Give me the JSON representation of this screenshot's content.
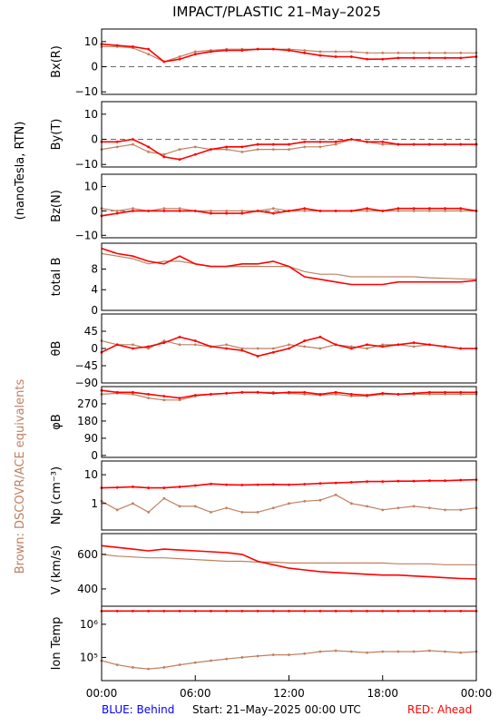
{
  "title": "IMPACT/PLASTIC   21–May–2025",
  "side_label_units": "(nanoTesla, RTN)",
  "side_label_brown": "Brown: DSCOVR/ACE equivalents",
  "footer": {
    "blue": "BLUE: Behind",
    "start": "Start: 21–May–2025 00:00 UTC",
    "red": "RED: Ahead"
  },
  "colors": {
    "ahead": "#ff0000",
    "equivalent": "#c08060",
    "behind": "#0000ff",
    "frame": "#000000"
  },
  "x_ticks": [
    "00:00",
    "06:00",
    "12:00",
    "18:00",
    "00:00"
  ],
  "chart_data": [
    {
      "type": "scatter",
      "panel": "bx",
      "ylabel": "Bx(R)",
      "ylim": [
        -11,
        15
      ],
      "yticks": [
        "−10",
        "0",
        "10"
      ],
      "zero_line": true,
      "series": [
        {
          "name": "Ahead",
          "color": "#ff0000",
          "values": [
            9,
            8.5,
            8,
            7,
            2,
            3,
            5,
            6,
            6.5,
            6.5,
            7,
            7,
            6.5,
            5.5,
            4.5,
            4,
            4,
            3,
            3,
            3.5,
            3.5,
            3.5,
            3.5,
            3.5,
            4
          ]
        },
        {
          "values": [
            8,
            8,
            7.5,
            5,
            2,
            4,
            6,
            6.5,
            7,
            7,
            7,
            7,
            7,
            6.5,
            6,
            6,
            6,
            5.5,
            5.5,
            5.5,
            5.5,
            5.5,
            5.5,
            5.5,
            5.5
          ]
        }
      ]
    },
    {
      "type": "scatter",
      "panel": "by",
      "ylabel": "By(T)",
      "ylim": [
        -11,
        15
      ],
      "yticks": [
        "−10",
        "0",
        "10"
      ],
      "zero_line": true,
      "series": [
        {
          "name": "Ahead",
          "values": [
            -1,
            -1,
            0,
            -3,
            -7,
            -8,
            -6,
            -4,
            -3,
            -3,
            -2,
            -2,
            -2,
            -1,
            -1,
            -1,
            0,
            -1,
            -1,
            -2,
            -2,
            -2,
            -2,
            -2,
            -2
          ]
        },
        {
          "values": [
            -4,
            -3,
            -2,
            -5,
            -6,
            -4,
            -3,
            -4,
            -4,
            -5,
            -4,
            -4,
            -4,
            -3,
            -3,
            -2,
            0,
            -1,
            -2,
            -2,
            -2,
            -2,
            -2,
            -2,
            -2
          ]
        }
      ]
    },
    {
      "type": "scatter",
      "panel": "bz",
      "ylabel": "Bz(N)",
      "ylim": [
        -11,
        15
      ],
      "yticks": [
        "−10",
        "0",
        "10"
      ],
      "zero_line": true,
      "series": [
        {
          "name": "Ahead",
          "values": [
            -2,
            -1,
            0,
            0,
            0,
            0,
            0,
            -1,
            -1,
            -1,
            0,
            -1,
            0,
            1,
            0,
            0,
            0,
            1,
            0,
            1,
            1,
            1,
            1,
            1,
            0
          ]
        },
        {
          "values": [
            1,
            0,
            1,
            0,
            1,
            1,
            0,
            0,
            0,
            0,
            0,
            1,
            0,
            0,
            0,
            0,
            0,
            0,
            0,
            0,
            0,
            0,
            0,
            0,
            0
          ]
        }
      ]
    },
    {
      "type": "line",
      "panel": "btot",
      "ylabel": "total B",
      "ylim": [
        0,
        13
      ],
      "yticks": [
        "0",
        "4",
        "8"
      ],
      "series": [
        {
          "name": "Ahead",
          "values": [
            12,
            11,
            10.5,
            9.5,
            9,
            10.5,
            9,
            8.5,
            8.5,
            9,
            9,
            9.5,
            8.5,
            6.5,
            6,
            5.5,
            5,
            5,
            5,
            5.5,
            5.5,
            5.5,
            5.5,
            5.5,
            5.8
          ]
        },
        {
          "values": [
            11,
            10.5,
            10,
            9,
            9.5,
            9.5,
            9,
            8.5,
            8.5,
            8.5,
            8.5,
            8.5,
            8.5,
            7.5,
            7,
            7,
            6.5,
            6.5,
            6.5,
            6.5,
            6.5,
            6.3,
            6.2,
            6.1,
            6
          ]
        }
      ]
    },
    {
      "type": "scatter",
      "panel": "theta",
      "ylabel": "θB",
      "ylim": [
        -90,
        90
      ],
      "yticks": [
        "−90",
        "−45",
        "0",
        "45"
      ],
      "series": [
        {
          "name": "Ahead",
          "values": [
            -10,
            10,
            0,
            5,
            15,
            30,
            20,
            5,
            0,
            -5,
            -20,
            -10,
            0,
            20,
            30,
            10,
            0,
            10,
            5,
            10,
            15,
            10,
            5,
            0,
            0
          ]
        },
        {
          "values": [
            20,
            10,
            10,
            0,
            20,
            10,
            10,
            5,
            10,
            0,
            0,
            0,
            10,
            5,
            0,
            10,
            5,
            0,
            10,
            10,
            5,
            10,
            5,
            0,
            0
          ]
        }
      ]
    },
    {
      "type": "scatter",
      "panel": "phi",
      "ylabel": "φB",
      "ylim": [
        -10,
        360
      ],
      "yticks": [
        "0",
        "90",
        "180",
        "270"
      ],
      "series": [
        {
          "name": "Ahead",
          "values": [
            340,
            330,
            330,
            320,
            310,
            300,
            315,
            320,
            325,
            330,
            330,
            325,
            330,
            330,
            320,
            330,
            320,
            315,
            325,
            320,
            325,
            330,
            330,
            330,
            330
          ]
        },
        {
          "values": [
            320,
            325,
            320,
            300,
            290,
            290,
            310,
            320,
            325,
            330,
            330,
            330,
            325,
            320,
            315,
            320,
            310,
            310,
            320,
            320,
            320,
            320,
            320,
            320,
            320
          ]
        }
      ]
    },
    {
      "type": "scatter",
      "panel": "np",
      "ylabel": "Np (cm⁻³)",
      "ylim": [
        0.12,
        30
      ],
      "log": true,
      "yticks": [
        "1",
        "10"
      ],
      "series": [
        {
          "name": "Ahead",
          "values": [
            3.5,
            3.6,
            3.8,
            3.5,
            3.5,
            3.8,
            4.2,
            4.8,
            4.5,
            4.4,
            4.5,
            4.6,
            4.5,
            4.7,
            5,
            5.2,
            5.5,
            5.8,
            5.8,
            6,
            6,
            6.2,
            6.2,
            6.5,
            6.7
          ]
        },
        {
          "values": [
            1.2,
            0.6,
            1,
            0.5,
            1.5,
            0.8,
            0.8,
            0.5,
            0.7,
            0.5,
            0.5,
            0.7,
            1,
            1.2,
            1.3,
            2,
            1,
            0.8,
            0.6,
            0.7,
            0.8,
            0.7,
            0.6,
            0.6,
            0.7
          ]
        }
      ]
    },
    {
      "type": "line",
      "panel": "v",
      "ylabel": "V (km/s)",
      "ylim": [
        300,
        720
      ],
      "yticks": [
        "400",
        "600"
      ],
      "series": [
        {
          "name": "Ahead",
          "values": [
            650,
            640,
            630,
            620,
            630,
            625,
            620,
            615,
            610,
            600,
            560,
            540,
            520,
            510,
            500,
            495,
            490,
            485,
            480,
            480,
            475,
            470,
            465,
            460,
            458
          ]
        },
        {
          "values": [
            600,
            590,
            585,
            580,
            580,
            575,
            570,
            565,
            560,
            560,
            555,
            555,
            550,
            550,
            550,
            550,
            550,
            550,
            550,
            545,
            545,
            545,
            540,
            540,
            540
          ]
        }
      ]
    },
    {
      "type": "scatter",
      "panel": "temp",
      "ylabel": "Ion Temp",
      "ylim": [
        20000,
        3500000
      ],
      "log": true,
      "yticks": [
        "10⁵",
        "10⁶"
      ],
      "series": [
        {
          "name": "Ahead",
          "values": [
            2500000,
            2500000,
            2500000,
            2500000,
            2500000,
            2500000,
            2500000,
            2500000,
            2500000,
            2500000,
            2500000,
            2500000,
            2500000,
            2500000,
            2500000,
            2500000,
            2500000,
            2500000,
            2500000,
            2500000,
            2500000,
            2500000,
            2500000,
            2500000,
            2500000
          ]
        },
        {
          "values": [
            80000,
            60000,
            50000,
            45000,
            50000,
            60000,
            70000,
            80000,
            90000,
            100000,
            110000,
            120000,
            120000,
            130000,
            150000,
            160000,
            150000,
            140000,
            150000,
            150000,
            150000,
            160000,
            150000,
            140000,
            150000
          ]
        }
      ]
    }
  ]
}
